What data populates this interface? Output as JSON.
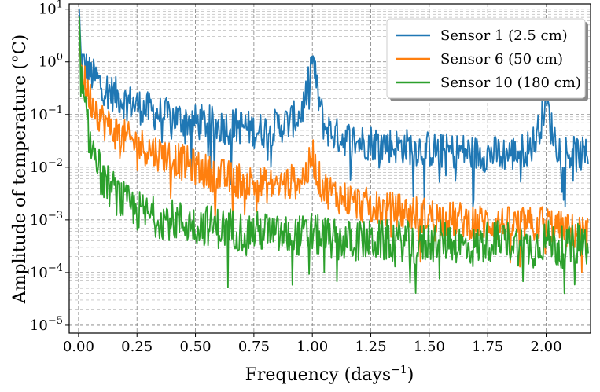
{
  "chart_data": {
    "type": "line",
    "title": "",
    "xlabel": "Frequency (days",
    "xlabel_sup": "−1",
    "xlabel_end": ")",
    "ylabel": "Amplitude of temperature (°C)",
    "xlim": [
      -0.04,
      2.19
    ],
    "ylim_log10": [
      -5.15,
      1.1
    ],
    "yscale": "log",
    "grid": true,
    "legend_position": "top-right",
    "x_ticks": [
      0.0,
      0.25,
      0.5,
      0.75,
      1.0,
      1.25,
      1.5,
      1.75,
      2.0
    ],
    "x_tick_labels": [
      "0.00",
      "0.25",
      "0.50",
      "0.75",
      "1.00",
      "1.25",
      "1.50",
      "1.75",
      "2.00"
    ],
    "y_ticks_exp": [
      -5,
      -4,
      -3,
      -2,
      -1,
      0,
      1
    ],
    "y_tick_base": "10",
    "y_tick_exps": [
      "−5",
      "−4",
      "−3",
      "−2",
      "−1",
      "0",
      "1"
    ],
    "series": [
      {
        "name": "Sensor 1 (2.5 cm)",
        "color": "#1f77b4",
        "x": [
          0.003,
          0.01,
          0.02,
          0.03,
          0.05,
          0.08,
          0.1,
          0.15,
          0.2,
          0.25,
          0.3,
          0.35,
          0.4,
          0.45,
          0.5,
          0.55,
          0.6,
          0.65,
          0.7,
          0.75,
          0.8,
          0.85,
          0.9,
          0.95,
          0.98,
          1.0,
          1.02,
          1.05,
          1.1,
          1.15,
          1.2,
          1.25,
          1.3,
          1.35,
          1.4,
          1.45,
          1.5,
          1.55,
          1.6,
          1.65,
          1.7,
          1.75,
          1.8,
          1.85,
          1.9,
          1.95,
          1.98,
          2.0,
          2.02,
          2.05,
          2.1,
          2.15,
          2.18
        ],
        "values": [
          8.0,
          1.2,
          0.9,
          0.8,
          0.6,
          0.45,
          0.35,
          0.25,
          0.18,
          0.15,
          0.12,
          0.1,
          0.09,
          0.08,
          0.07,
          0.07,
          0.06,
          0.06,
          0.06,
          0.05,
          0.05,
          0.06,
          0.07,
          0.1,
          0.3,
          1.3,
          0.3,
          0.06,
          0.04,
          0.035,
          0.03,
          0.03,
          0.028,
          0.025,
          0.025,
          0.023,
          0.022,
          0.02,
          0.02,
          0.02,
          0.018,
          0.018,
          0.018,
          0.018,
          0.02,
          0.03,
          0.08,
          0.2,
          0.06,
          0.025,
          0.018,
          0.017,
          0.016
        ]
      },
      {
        "name": "Sensor 6 (50 cm)",
        "color": "#ff7f0e",
        "x": [
          0.003,
          0.01,
          0.02,
          0.03,
          0.05,
          0.08,
          0.1,
          0.15,
          0.2,
          0.25,
          0.3,
          0.35,
          0.4,
          0.45,
          0.5,
          0.55,
          0.6,
          0.65,
          0.7,
          0.75,
          0.8,
          0.85,
          0.9,
          0.95,
          0.98,
          1.0,
          1.02,
          1.05,
          1.1,
          1.15,
          1.2,
          1.25,
          1.3,
          1.35,
          1.4,
          1.45,
          1.5,
          1.55,
          1.6,
          1.65,
          1.7,
          1.75,
          1.8,
          1.85,
          1.9,
          1.95,
          1.98,
          2.0,
          2.02,
          2.05,
          2.1,
          2.15,
          2.18
        ],
        "values": [
          6.0,
          0.8,
          0.5,
          0.35,
          0.2,
          0.12,
          0.08,
          0.05,
          0.035,
          0.028,
          0.022,
          0.018,
          0.015,
          0.012,
          0.01,
          0.008,
          0.007,
          0.006,
          0.0055,
          0.005,
          0.0045,
          0.0045,
          0.005,
          0.006,
          0.008,
          0.02,
          0.007,
          0.004,
          0.003,
          0.0025,
          0.002,
          0.0018,
          0.0016,
          0.0015,
          0.0014,
          0.0013,
          0.0012,
          0.0011,
          0.001,
          0.001,
          0.0009,
          0.0009,
          0.00085,
          0.0008,
          0.0008,
          0.0008,
          0.0009,
          0.001,
          0.0008,
          0.0007,
          0.0006,
          0.0006,
          0.0005
        ]
      },
      {
        "name": "Sensor 10 (180 cm)",
        "color": "#2ca02c",
        "x": [
          0.003,
          0.01,
          0.02,
          0.03,
          0.05,
          0.08,
          0.1,
          0.15,
          0.2,
          0.25,
          0.3,
          0.35,
          0.4,
          0.45,
          0.5,
          0.55,
          0.6,
          0.65,
          0.7,
          0.75,
          0.8,
          0.85,
          0.9,
          0.95,
          0.98,
          1.0,
          1.02,
          1.05,
          1.1,
          1.15,
          1.2,
          1.25,
          1.3,
          1.35,
          1.4,
          1.45,
          1.5,
          1.55,
          1.6,
          1.65,
          1.7,
          1.75,
          1.8,
          1.85,
          1.9,
          1.95,
          1.98,
          2.0,
          2.02,
          2.05,
          2.1,
          2.15,
          2.18
        ],
        "values": [
          5.0,
          0.5,
          0.2,
          0.1,
          0.03,
          0.012,
          0.006,
          0.0035,
          0.002,
          0.0015,
          0.0012,
          0.0011,
          0.001,
          0.0009,
          0.0008,
          0.0008,
          0.0007,
          0.0007,
          0.0006,
          0.0006,
          0.0006,
          0.0005,
          0.0005,
          0.0005,
          0.0005,
          0.0006,
          0.0005,
          0.0005,
          0.0004,
          0.0004,
          0.0004,
          0.0004,
          0.0004,
          0.0004,
          0.0004,
          0.0003,
          0.0004,
          0.0004,
          0.0004,
          0.0003,
          0.0003,
          0.0004,
          0.0004,
          0.0004,
          0.0003,
          0.0003,
          0.0004,
          0.0004,
          0.0004,
          0.0003,
          0.0003,
          0.0004,
          0.0003
        ]
      }
    ]
  }
}
